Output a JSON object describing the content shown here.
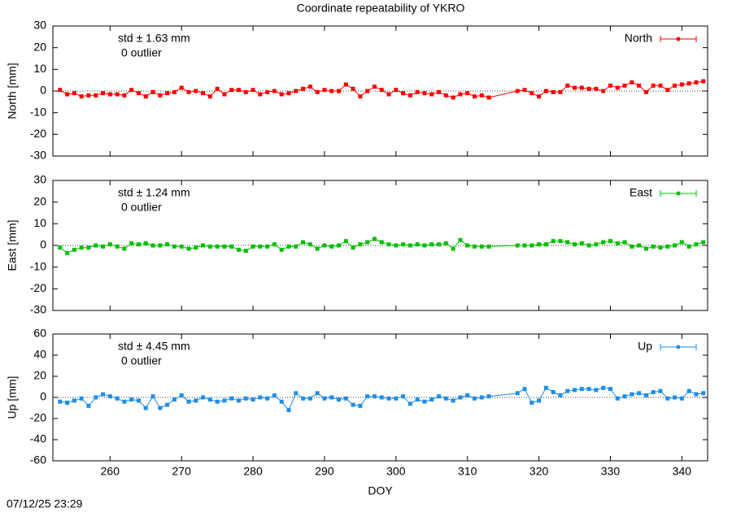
{
  "title": "Coordinate repeatability of YKRO",
  "footer": "07/12/25 23:29",
  "chart_data": [
    {
      "type": "line",
      "ylabel": "North [mm]",
      "annotations": [
        "std ± 1.63 mm",
        "0 outlier"
      ],
      "xlim": [
        252,
        343.6
      ],
      "xticks": [
        260,
        270,
        280,
        290,
        300,
        310,
        320,
        330,
        340
      ],
      "ylim": [
        -30,
        30
      ],
      "yticks": [
        -30,
        -20,
        -10,
        0,
        10,
        20,
        30
      ],
      "zero_line": true,
      "x": [
        253,
        254,
        255,
        256,
        257,
        258,
        259,
        260,
        261,
        262,
        263,
        264,
        265,
        266,
        267,
        268,
        269,
        270,
        271,
        272,
        273,
        274,
        275,
        276,
        277,
        278,
        279,
        280,
        281,
        282,
        283,
        284,
        285,
        286,
        287,
        288,
        289,
        290,
        291,
        292,
        293,
        294,
        295,
        296,
        297,
        298,
        299,
        300,
        301,
        302,
        303,
        304,
        305,
        306,
        307,
        308,
        309,
        310,
        311,
        312,
        313,
        317,
        318,
        319,
        320,
        321,
        322,
        323,
        324,
        325,
        326,
        327,
        328,
        329,
        330,
        331,
        332,
        333,
        334,
        335,
        336,
        337,
        338,
        339,
        340,
        341,
        342,
        343
      ],
      "series": [
        {
          "name": "North",
          "color": "#ff0000",
          "values": [
            0.5,
            -1.5,
            -1,
            -2.5,
            -2,
            -2,
            -1,
            -1.5,
            -1.5,
            -2,
            0.5,
            -1,
            -2.5,
            -0.5,
            -2,
            -1,
            -0.5,
            1.5,
            -0.5,
            0,
            -1,
            -2.5,
            1,
            -1.5,
            0.5,
            0.5,
            -0.5,
            0.5,
            -1.5,
            -0.5,
            0,
            -1.5,
            -1,
            0,
            1,
            2,
            -0.5,
            0.5,
            0,
            0,
            3,
            1,
            -2.5,
            0,
            2,
            0.5,
            -1.5,
            0.5,
            -1,
            -2,
            -0.5,
            -1,
            -1.5,
            -0.5,
            -2,
            -3,
            -1.5,
            -1,
            -2.5,
            -2,
            -3,
            0,
            0.5,
            -1,
            -2.5,
            0,
            -0.5,
            -0.5,
            2.5,
            1.5,
            1.5,
            1,
            1,
            0,
            2.5,
            1.5,
            2.5,
            4,
            2.5,
            -0.5,
            2.5,
            2.5,
            0.5,
            2.5,
            3,
            3.5,
            4,
            4.5
          ]
        }
      ]
    },
    {
      "type": "line",
      "ylabel": "East [mm]",
      "annotations": [
        "std ± 1.24 mm",
        "0 outlier"
      ],
      "xlim": [
        252,
        343.6
      ],
      "xticks": [
        260,
        270,
        280,
        290,
        300,
        310,
        320,
        330,
        340
      ],
      "ylim": [
        -30,
        30
      ],
      "yticks": [
        -30,
        -20,
        -10,
        0,
        10,
        20,
        30
      ],
      "zero_line": true,
      "x": [
        253,
        254,
        255,
        256,
        257,
        258,
        259,
        260,
        261,
        262,
        263,
        264,
        265,
        266,
        267,
        268,
        269,
        270,
        271,
        272,
        273,
        274,
        275,
        276,
        277,
        278,
        279,
        280,
        281,
        282,
        283,
        284,
        285,
        286,
        287,
        288,
        289,
        290,
        291,
        292,
        293,
        294,
        295,
        296,
        297,
        298,
        299,
        300,
        301,
        302,
        303,
        304,
        305,
        306,
        307,
        308,
        309,
        310,
        311,
        312,
        313,
        317,
        318,
        319,
        320,
        321,
        322,
        323,
        324,
        325,
        326,
        327,
        328,
        329,
        330,
        331,
        332,
        333,
        334,
        335,
        336,
        337,
        338,
        339,
        340,
        341,
        342,
        343
      ],
      "series": [
        {
          "name": "East",
          "color": "#00c000",
          "values": [
            -1,
            -3.5,
            -2,
            -1,
            -1,
            0,
            -0.5,
            0.5,
            -0.5,
            -1.5,
            1,
            0.5,
            1,
            0,
            0,
            0.5,
            -0.5,
            -0.5,
            -1.5,
            -1,
            0,
            -0.5,
            -0.5,
            -0.5,
            -0.5,
            -2,
            -2.5,
            -0.5,
            -0.5,
            -0.5,
            0.5,
            -2,
            -0.5,
            -0.5,
            1.5,
            0.5,
            -1.5,
            0,
            -0.5,
            0,
            2,
            -1,
            0.5,
            1.5,
            3,
            1.5,
            0.5,
            0,
            0.5,
            0,
            0.5,
            0,
            0.5,
            0.5,
            1,
            -1.5,
            2.5,
            0,
            -0.5,
            -0.5,
            -0.5,
            0,
            0,
            0,
            0.5,
            0.5,
            2,
            2,
            1.5,
            0.5,
            1,
            0,
            0.5,
            1.5,
            2,
            1,
            1.5,
            -0.5,
            0,
            -1.5,
            -0.5,
            -1,
            -0.5,
            0,
            1.5,
            -0.5,
            0.5,
            1.5
          ]
        }
      ]
    },
    {
      "type": "line",
      "ylabel": "Up [mm]",
      "xlabel": "DOY",
      "annotations": [
        "std ± 4.45 mm",
        "0 outlier"
      ],
      "xlim": [
        252,
        343.6
      ],
      "xticks": [
        260,
        270,
        280,
        290,
        300,
        310,
        320,
        330,
        340
      ],
      "ylim": [
        -60,
        60
      ],
      "yticks": [
        -60,
        -40,
        -20,
        0,
        20,
        40,
        60
      ],
      "zero_line": true,
      "x": [
        253,
        254,
        255,
        256,
        257,
        258,
        259,
        260,
        261,
        262,
        263,
        264,
        265,
        266,
        267,
        268,
        269,
        270,
        271,
        272,
        273,
        274,
        275,
        276,
        277,
        278,
        279,
        280,
        281,
        282,
        283,
        284,
        285,
        286,
        287,
        288,
        289,
        290,
        291,
        292,
        293,
        294,
        295,
        296,
        297,
        298,
        299,
        300,
        301,
        302,
        303,
        304,
        305,
        306,
        307,
        308,
        309,
        310,
        311,
        312,
        313,
        317,
        318,
        319,
        320,
        321,
        322,
        323,
        324,
        325,
        326,
        327,
        328,
        329,
        330,
        331,
        332,
        333,
        334,
        335,
        336,
        337,
        338,
        339,
        340,
        341,
        342,
        343
      ],
      "series": [
        {
          "name": "Up",
          "color": "#1e8ee8",
          "values": [
            -4,
            -5,
            -3,
            -1,
            -8,
            0,
            3,
            1,
            -1,
            -4,
            -2,
            -3,
            -10,
            1,
            -10,
            -7,
            -2,
            2,
            -4,
            -3,
            0,
            -2,
            -4,
            -3,
            -1,
            -3,
            -1,
            -2,
            0,
            -1,
            2,
            -4,
            -12,
            4,
            -1,
            -1,
            4,
            -1,
            0,
            -2,
            -1,
            -7,
            -8,
            1,
            1,
            0,
            -1,
            -1,
            1,
            -6,
            -2,
            -4,
            -2,
            1,
            -1,
            -3,
            0,
            2,
            -1,
            0,
            1,
            4,
            8,
            -5,
            -3,
            9,
            5,
            2,
            6,
            7,
            8,
            8,
            7,
            9,
            8,
            -1,
            1,
            3,
            4,
            2,
            5,
            6,
            -1,
            0,
            -1,
            6,
            3,
            4
          ]
        }
      ]
    }
  ]
}
